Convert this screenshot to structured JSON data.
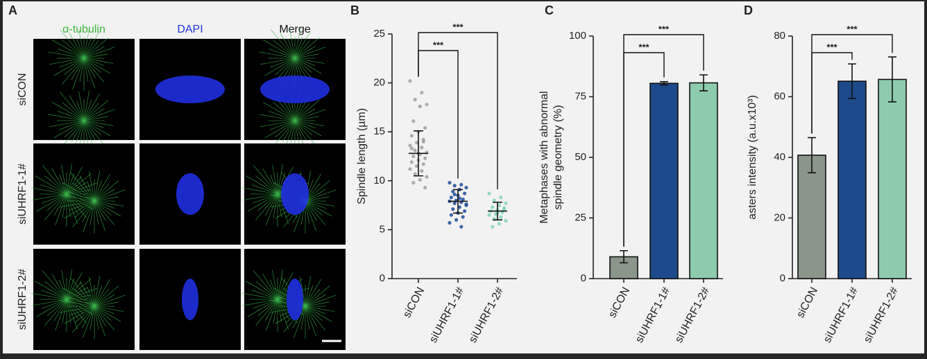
{
  "figure": {
    "panel_a": {
      "label": "A",
      "columns": [
        "α-tubulin",
        "DAPI",
        "Merge"
      ],
      "rows": [
        "siCON",
        "siUHRF1-1#",
        "siUHRF1-2#"
      ]
    }
  },
  "chart_data": [
    {
      "type": "dot",
      "label": "B",
      "ylabel": "Spindle length (µm)",
      "categories": [
        "siCON",
        "siUHRF1-1#",
        "siUHRF1-2#"
      ],
      "values": [
        12.8,
        7.9,
        6.9
      ],
      "errors": [
        2.3,
        1.2,
        0.9
      ],
      "points": [
        [
          20.2,
          19.0,
          18.3,
          17.8,
          17.6,
          16.1,
          15.4,
          15.0,
          14.6,
          14.2,
          13.9,
          13.6,
          13.4,
          13.1,
          12.9,
          12.7,
          12.5,
          12.3,
          12.1,
          11.9,
          11.7,
          11.5,
          11.2,
          11.0,
          10.7,
          10.4,
          10.1,
          9.8,
          9.3,
          12.8,
          13.3,
          14.0
        ],
        [
          9.8,
          9.6,
          9.5,
          9.3,
          9.1,
          8.9,
          8.7,
          8.5,
          8.3,
          8.1,
          8.0,
          7.9,
          7.8,
          7.7,
          7.5,
          7.3,
          7.1,
          6.9,
          6.7,
          6.5,
          6.3,
          6.0,
          5.7,
          5.3,
          8.6,
          7.6,
          8.2
        ],
        [
          8.7,
          8.3,
          8.0,
          7.7,
          7.5,
          7.3,
          7.1,
          7.0,
          6.9,
          6.8,
          6.6,
          6.5,
          6.3,
          6.1,
          5.9,
          5.6,
          5.3,
          7.2,
          6.7
        ]
      ],
      "colors": [
        "#a0a0a0",
        "#1f4e9c",
        "#7fd3b8"
      ],
      "ylim": [
        0,
        25
      ],
      "yticks": [
        0,
        5,
        10,
        15,
        20,
        25
      ],
      "significance": [
        "***",
        "***"
      ]
    },
    {
      "type": "bar",
      "label": "C",
      "ylabel": [
        "Metaphases with abnormal",
        "spindle geometry (%)"
      ],
      "categories": [
        "siCON",
        "siUHRF1-1#",
        "siUHRF1-2#"
      ],
      "values": [
        9,
        80.5,
        80.7
      ],
      "errors": [
        2.5,
        0.7,
        3.3
      ],
      "colors": [
        "#8a968a",
        "#1d4a8a",
        "#8dcbad"
      ],
      "ylim": [
        0,
        100
      ],
      "yticks": [
        0,
        25,
        50,
        75,
        100
      ],
      "significance": [
        "***",
        "***"
      ]
    },
    {
      "type": "bar",
      "label": "D",
      "ylabel": "asters intensity (a.u.x10³)",
      "categories": [
        "siCON",
        "siUHRF1-1#",
        "siUHRF1-2#"
      ],
      "values": [
        40.7,
        65.1,
        65.7
      ],
      "errors": [
        5.8,
        5.7,
        7.4
      ],
      "colors": [
        "#8a968a",
        "#1d4a8a",
        "#8dcbad"
      ],
      "ylim": [
        0,
        80
      ],
      "yticks": [
        0,
        20,
        40,
        60,
        80
      ],
      "significance": [
        "***",
        "***"
      ]
    }
  ]
}
